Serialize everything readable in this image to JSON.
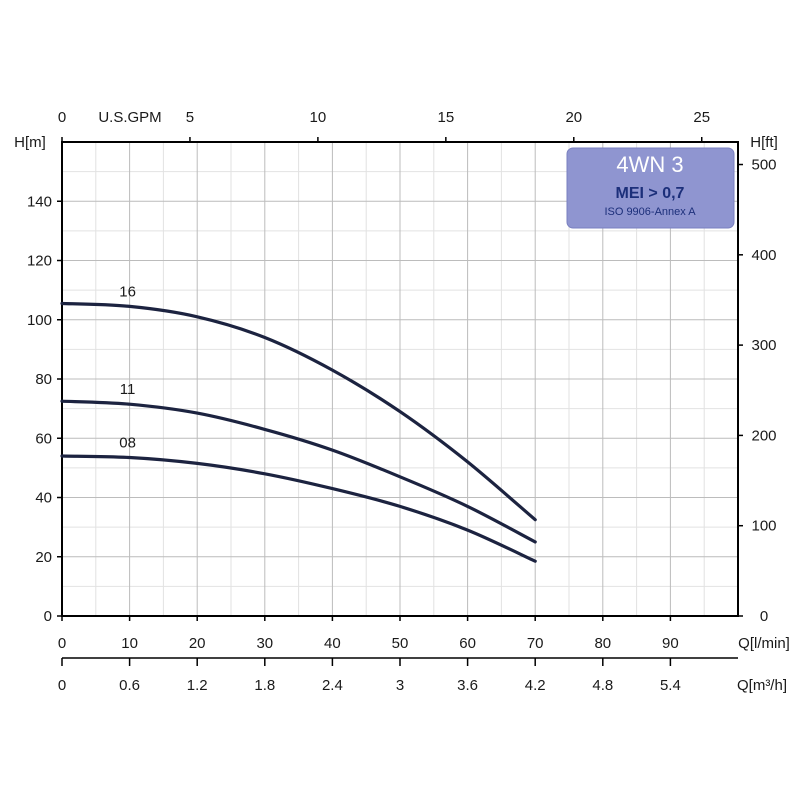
{
  "chart_data": {
    "type": "line",
    "title": "",
    "legend": {
      "title": "4WN 3",
      "mei": "MEI > 0,7",
      "iso": "ISO 9906-Annex A",
      "background": "#8f95d0",
      "position": "top-right"
    },
    "axes": {
      "x_lmin": {
        "label": "Q[l/min]",
        "range": [
          0,
          100
        ],
        "ticks": [
          0,
          10,
          20,
          30,
          40,
          50,
          60,
          70,
          80,
          90
        ]
      },
      "x_m3h": {
        "label": "Q[m³/h]",
        "range": [
          0,
          6
        ],
        "ticks": [
          "0",
          "0.6",
          "1.2",
          "1.8",
          "2.4",
          "3",
          "3.6",
          "4.2",
          "4.8",
          "5.4"
        ]
      },
      "x_gpm": {
        "label": "U.S.GPM",
        "ticks": [
          0,
          5,
          10,
          15,
          20,
          25
        ]
      },
      "y_m": {
        "label": "H[m]",
        "range": [
          0,
          160
        ],
        "ticks": [
          0,
          20,
          40,
          60,
          80,
          100,
          120,
          140
        ]
      },
      "y_ft": {
        "label": "H[ft]",
        "ticks": [
          0,
          100,
          200,
          300,
          400,
          500
        ]
      }
    },
    "grid": true,
    "line_color": "#1c2340",
    "series": [
      {
        "name": "16",
        "x": [
          0,
          10,
          20,
          30,
          40,
          50,
          60,
          70
        ],
        "y": [
          105.5,
          104.5,
          101,
          94,
          83,
          69,
          52,
          32.5
        ]
      },
      {
        "name": "11",
        "x": [
          0,
          10,
          20,
          30,
          40,
          50,
          60,
          70
        ],
        "y": [
          72.5,
          71.5,
          68.5,
          63,
          56,
          47,
          37,
          25
        ]
      },
      {
        "name": "08",
        "x": [
          0,
          10,
          20,
          30,
          40,
          50,
          60,
          70
        ],
        "y": [
          54,
          53.5,
          51.5,
          48,
          43,
          37,
          29,
          18.5
        ]
      }
    ]
  }
}
